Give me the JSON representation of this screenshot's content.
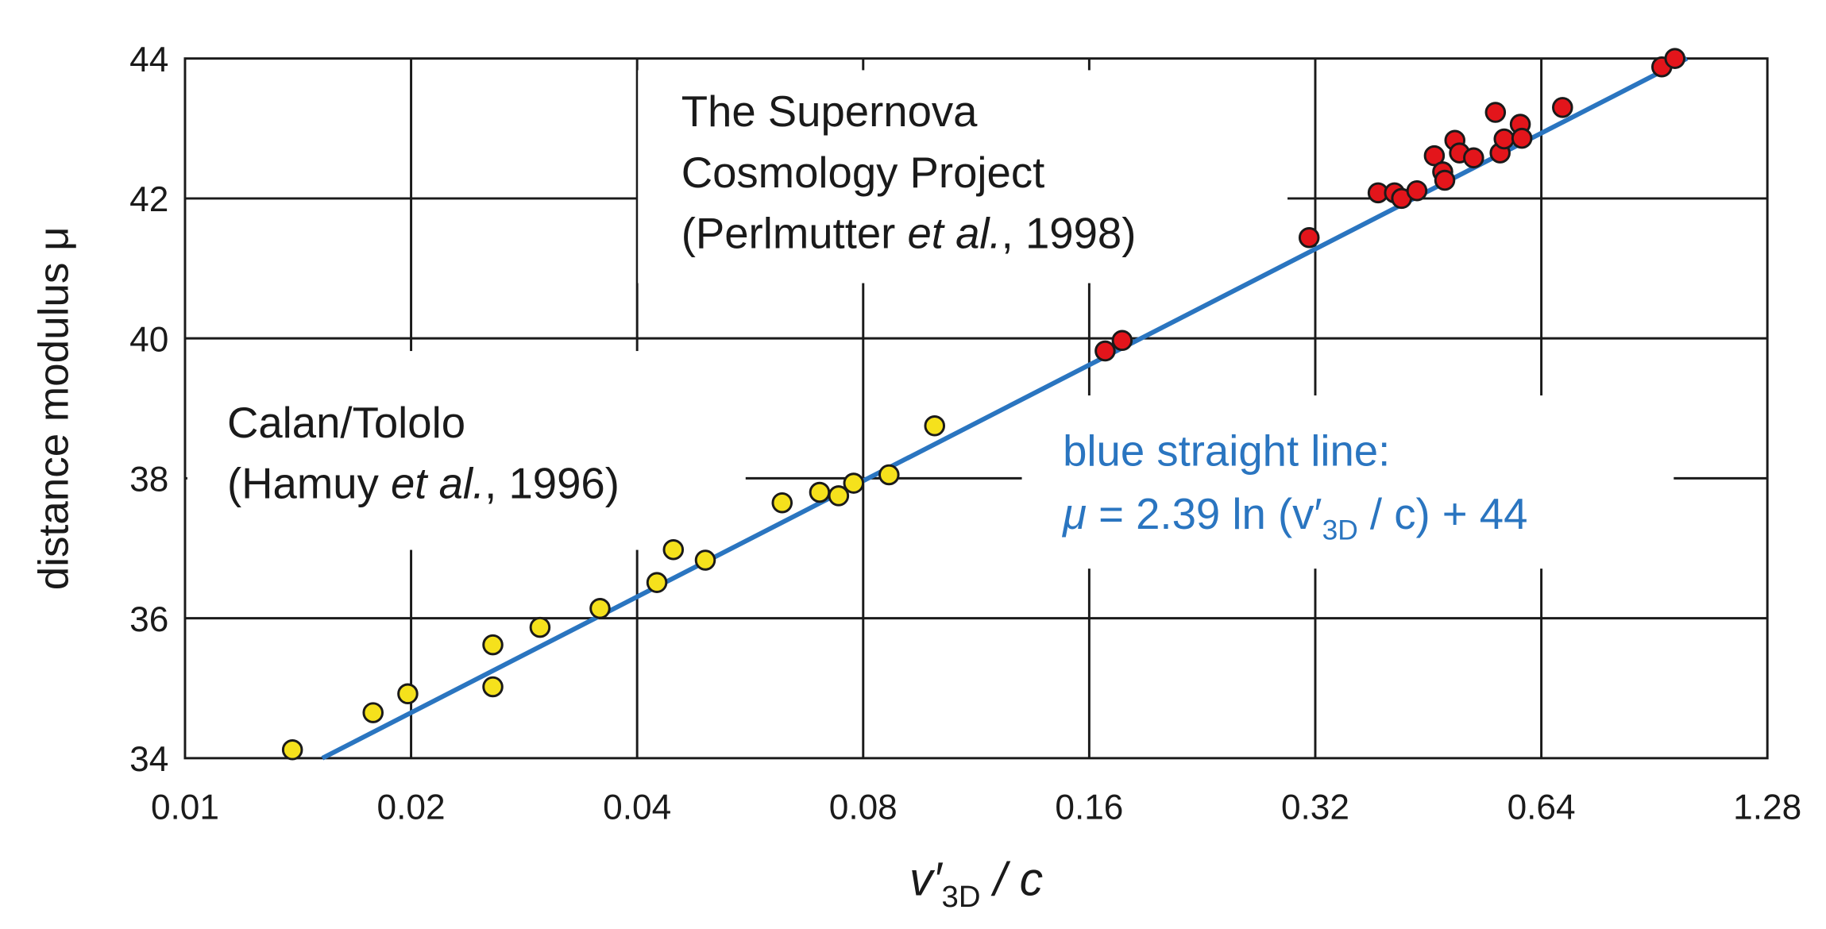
{
  "chart_data": {
    "type": "scatter",
    "xlabel": {
      "main": "v′",
      "sub": "3D",
      "rest": " / c"
    },
    "ylabel": "distance modulus μ",
    "xscale": "log2",
    "xlim": [
      0.01,
      1.28
    ],
    "ylim": [
      34,
      44
    ],
    "xticks": [
      "0.01",
      "0.02",
      "0.04",
      "0.08",
      "0.16",
      "0.32",
      "0.64",
      "1.28"
    ],
    "yticks": [
      "34",
      "36",
      "38",
      "40",
      "42",
      "44"
    ],
    "grid": true,
    "colors": {
      "calan": "#f5e11c",
      "scp": "#e3151b",
      "fit": "#2a75c0",
      "marker_edge": "#1a1a1a"
    },
    "annotations": {
      "scp": {
        "line1": "The Supernova",
        "line2": "Cosmology Project",
        "line3_a": "(Perlmutter ",
        "line3_b": "et al.",
        "line3_c": ", 1998)"
      },
      "calan": {
        "line1": "Calan/Tololo",
        "line2_a": "(Hamuy ",
        "line2_b": "et al.",
        "line2_c": ", 1996)"
      },
      "fit": {
        "line1": "blue straight line:",
        "mu": "μ",
        "eq_a": " = 2.39 ln (v′",
        "eq_sub": "3D",
        "eq_b": " / c) + 44"
      }
    },
    "fit_line": {
      "slope": 2.39,
      "intercept": 44,
      "form": "mu = 2.39 ln(x) + 44"
    },
    "series": [
      {
        "group": "calan",
        "points": [
          [
            0.0139,
            34.12
          ],
          [
            0.0178,
            34.65
          ],
          [
            0.0198,
            34.92
          ],
          [
            0.0257,
            35.62
          ],
          [
            0.0257,
            35.02
          ],
          [
            0.0297,
            35.87
          ],
          [
            0.0357,
            36.14
          ],
          [
            0.0425,
            36.51
          ],
          [
            0.0447,
            36.98
          ],
          [
            0.0493,
            36.83
          ],
          [
            0.0624,
            37.65
          ],
          [
            0.07,
            37.8
          ],
          [
            0.0742,
            37.75
          ],
          [
            0.0777,
            37.93
          ],
          [
            0.0866,
            38.05
          ],
          [
            0.0996,
            38.75
          ]
        ]
      },
      {
        "group": "scp",
        "points": [
          [
            0.168,
            39.82
          ],
          [
            0.177,
            39.97
          ],
          [
            0.314,
            41.44
          ],
          [
            0.388,
            42.08
          ],
          [
            0.408,
            42.08
          ],
          [
            0.417,
            42.0
          ],
          [
            0.437,
            42.11
          ],
          [
            0.461,
            42.61
          ],
          [
            0.473,
            42.38
          ],
          [
            0.476,
            42.26
          ],
          [
            0.491,
            42.83
          ],
          [
            0.498,
            42.65
          ],
          [
            0.52,
            42.58
          ],
          [
            0.556,
            43.23
          ],
          [
            0.564,
            42.65
          ],
          [
            0.571,
            42.85
          ],
          [
            0.6,
            43.06
          ],
          [
            0.603,
            42.86
          ],
          [
            0.683,
            43.3
          ],
          [
            0.926,
            43.88
          ],
          [
            0.964,
            44.0
          ]
        ]
      }
    ]
  }
}
